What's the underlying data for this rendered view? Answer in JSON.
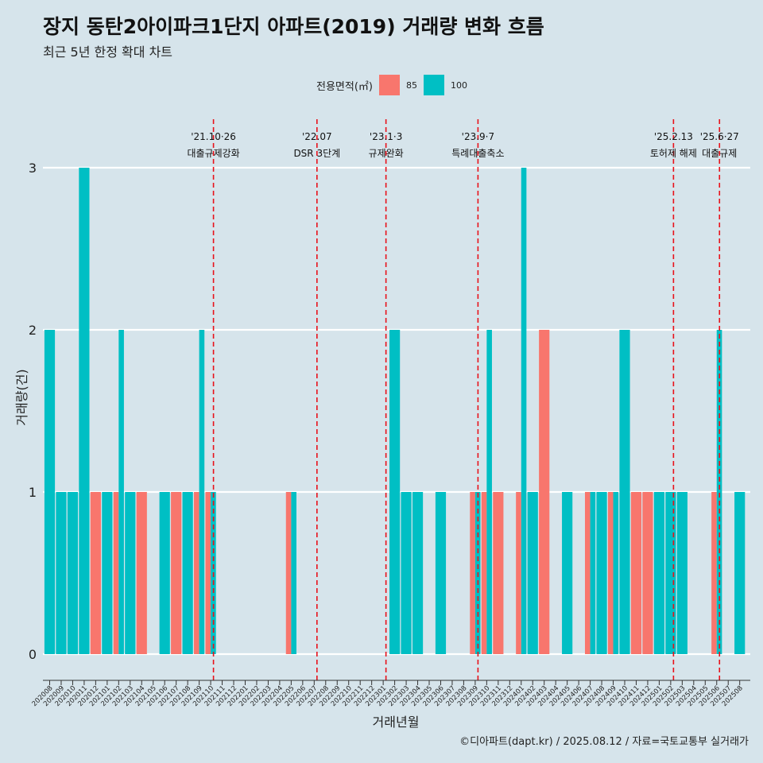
{
  "header": {
    "title": "장지 동탄2아이파크1단지 아파트(2019) 거래량 변화 흐름",
    "subtitle": "최근 5년 한정 확대 차트"
  },
  "legend": {
    "title": "전용면적(㎡)",
    "items": [
      {
        "label": "85",
        "color": "#f8766d"
      },
      {
        "label": "100",
        "color": "#00bfc4"
      }
    ]
  },
  "caption": "©디아파트(dapt.kr) / 2025.08.12 / 자료=국토교통부 실거래가",
  "chart_data": {
    "type": "bar",
    "xlabel": "거래년월",
    "ylabel": "거래량(건)",
    "ylim": [
      0,
      3
    ],
    "yticks": [
      0,
      1,
      2,
      3
    ],
    "grid": "horizontal",
    "legend_position": "top",
    "categories": [
      "202008",
      "202009",
      "202010",
      "202011",
      "202012",
      "202101",
      "202102",
      "202103",
      "202104",
      "202105",
      "202106",
      "202107",
      "202108",
      "202109",
      "202110",
      "202111",
      "202112",
      "202201",
      "202202",
      "202203",
      "202204",
      "202205",
      "202206",
      "202207",
      "202208",
      "202209",
      "202210",
      "202211",
      "202212",
      "202301",
      "202302",
      "202303",
      "202304",
      "202305",
      "202306",
      "202307",
      "202308",
      "202309",
      "202310",
      "202311",
      "202312",
      "202401",
      "202402",
      "202403",
      "202404",
      "202405",
      "202406",
      "202407",
      "202408",
      "202409",
      "202410",
      "202411",
      "202412",
      "202501",
      "202502",
      "202503",
      "202504",
      "202505",
      "202506",
      "202507",
      "202508"
    ],
    "series": [
      {
        "name": "85",
        "color": "#f8766d",
        "values": [
          0,
          0,
          0,
          0,
          1,
          0,
          1,
          0,
          1,
          0,
          0,
          1,
          0,
          1,
          1,
          0,
          0,
          0,
          0,
          0,
          0,
          1,
          0,
          0,
          0,
          0,
          0,
          0,
          0,
          0,
          0,
          0,
          0,
          0,
          0,
          0,
          0,
          1,
          1,
          1,
          0,
          1,
          0,
          2,
          0,
          0,
          0,
          1,
          0,
          1,
          0,
          1,
          1,
          0,
          0,
          0,
          0,
          0,
          1,
          0,
          0
        ]
      },
      {
        "name": "100",
        "color": "#00bfc4",
        "values": [
          2,
          1,
          1,
          3,
          0,
          1,
          2,
          1,
          0,
          0,
          1,
          0,
          1,
          2,
          1,
          0,
          0,
          0,
          0,
          0,
          0,
          1,
          0,
          0,
          0,
          0,
          0,
          0,
          0,
          0,
          2,
          1,
          1,
          0,
          1,
          0,
          0,
          1,
          2,
          0,
          0,
          3,
          1,
          0,
          0,
          1,
          0,
          1,
          1,
          1,
          2,
          0,
          0,
          1,
          1,
          1,
          0,
          0,
          2,
          0,
          1
        ]
      }
    ],
    "events": [
      {
        "date": "202110",
        "label1": "'21.10·26",
        "label2": "대출규제강화"
      },
      {
        "date": "202207",
        "label1": "'22.07",
        "label2": "DSR 3단계"
      },
      {
        "date": "202301",
        "label1": "'23.1·3",
        "label2": "규제완화"
      },
      {
        "date": "202309",
        "label1": "'23.9·7",
        "label2": "특례대출축소"
      },
      {
        "date": "202502",
        "label1": "'25.2.13",
        "label2": "토허제 해제"
      },
      {
        "date": "202506",
        "label1": "'25.6·27",
        "label2": "대출규제"
      }
    ]
  }
}
